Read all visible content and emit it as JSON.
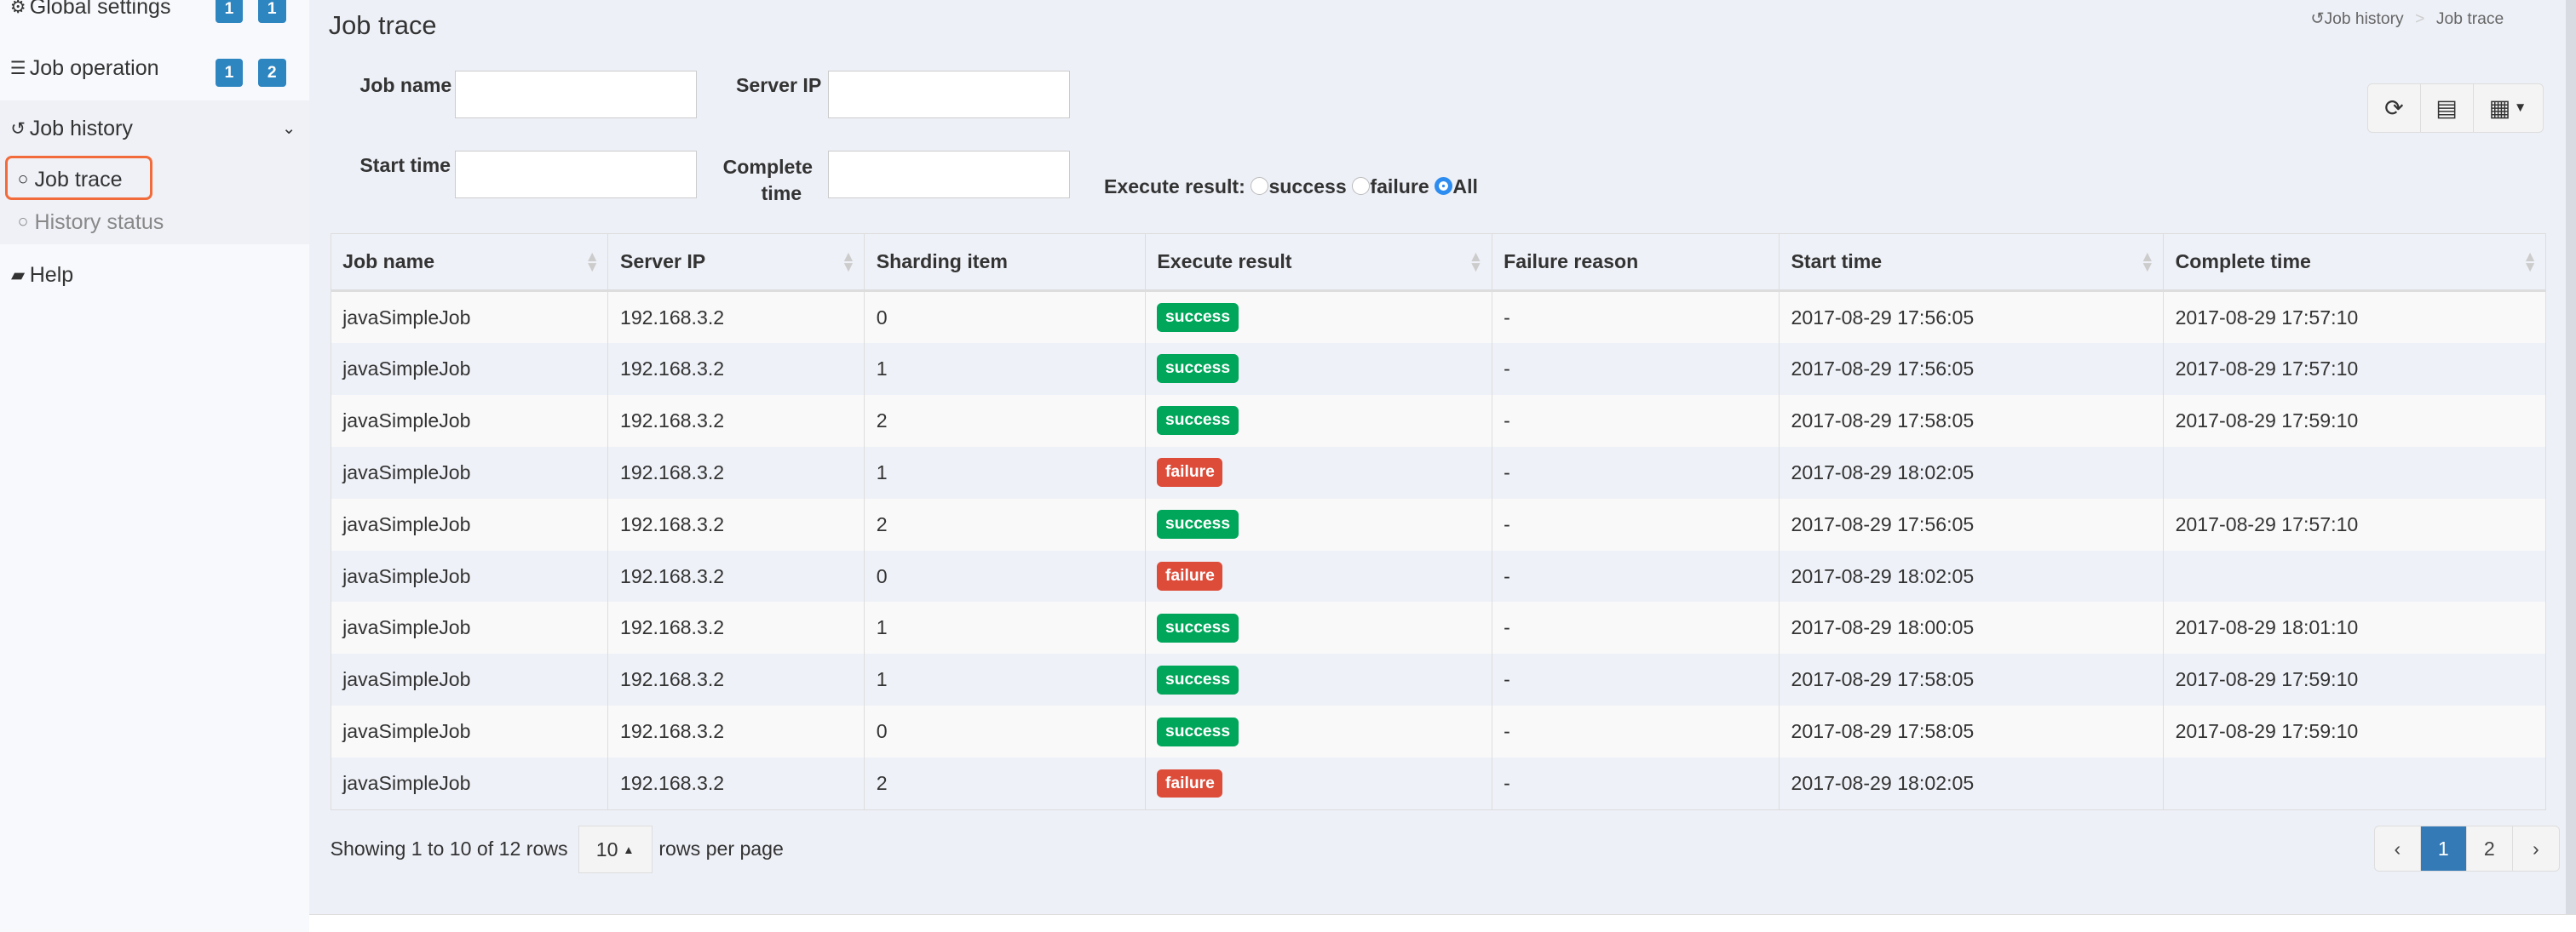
{
  "sidebar": {
    "items": [
      {
        "label": "Global settings",
        "icon": "gears-icon",
        "badges": [
          "1",
          "1"
        ]
      },
      {
        "label": "Job operation",
        "icon": "tasks-icon",
        "badges": [
          "1",
          "2"
        ]
      },
      {
        "label": "Job history",
        "icon": "history-icon"
      },
      {
        "label": "Job trace",
        "icon": "circle-icon",
        "active": true
      },
      {
        "label": "History status",
        "icon": "circle-icon"
      },
      {
        "label": "Help",
        "icon": "book-icon"
      }
    ]
  },
  "header": {
    "title": "Job trace",
    "breadcrumb": [
      "Job history",
      "Job trace"
    ]
  },
  "form": {
    "job_name_label": "Job name",
    "job_name_value": "",
    "server_ip_label": "Server IP",
    "server_ip_value": "",
    "start_time_label": "Start time",
    "start_time_value": "",
    "complete_time_label": "Complete time",
    "complete_time_value": "",
    "execute_result_label": "Execute result:",
    "options": [
      "success",
      "failure",
      "All"
    ],
    "selected": "All"
  },
  "table": {
    "columns": [
      "Job name",
      "Server IP",
      "Sharding item",
      "Execute result",
      "Failure reason",
      "Start time",
      "Complete time"
    ],
    "rows": [
      [
        "javaSimpleJob",
        "192.168.3.2",
        "0",
        "success",
        "-",
        "2017-08-29 17:56:05",
        "2017-08-29 17:57:10"
      ],
      [
        "javaSimpleJob",
        "192.168.3.2",
        "1",
        "success",
        "-",
        "2017-08-29 17:56:05",
        "2017-08-29 17:57:10"
      ],
      [
        "javaSimpleJob",
        "192.168.3.2",
        "2",
        "success",
        "-",
        "2017-08-29 17:58:05",
        "2017-08-29 17:59:10"
      ],
      [
        "javaSimpleJob",
        "192.168.3.2",
        "1",
        "failure",
        "-",
        "2017-08-29 18:02:05",
        ""
      ],
      [
        "javaSimpleJob",
        "192.168.3.2",
        "2",
        "success",
        "-",
        "2017-08-29 17:56:05",
        "2017-08-29 17:57:10"
      ],
      [
        "javaSimpleJob",
        "192.168.3.2",
        "0",
        "failure",
        "-",
        "2017-08-29 18:02:05",
        ""
      ],
      [
        "javaSimpleJob",
        "192.168.3.2",
        "1",
        "success",
        "-",
        "2017-08-29 18:00:05",
        "2017-08-29 18:01:10"
      ],
      [
        "javaSimpleJob",
        "192.168.3.2",
        "1",
        "success",
        "-",
        "2017-08-29 17:58:05",
        "2017-08-29 17:59:10"
      ],
      [
        "javaSimpleJob",
        "192.168.3.2",
        "0",
        "success",
        "-",
        "2017-08-29 17:58:05",
        "2017-08-29 17:59:10"
      ],
      [
        "javaSimpleJob",
        "192.168.3.2",
        "2",
        "failure",
        "-",
        "2017-08-29 18:02:05",
        ""
      ]
    ]
  },
  "footer": {
    "showing": "Showing 1 to 10 of 12 rows",
    "page_size": "10",
    "rows_per_page": "rows per page",
    "pages": [
      "‹",
      "1",
      "2",
      "›"
    ],
    "current_page": "1"
  },
  "colors": {
    "success": "#00a65a",
    "failure": "#dd4b39",
    "accent": "#337ab7",
    "badge": "#2e86c1",
    "active_outline": "#f26b3a"
  }
}
